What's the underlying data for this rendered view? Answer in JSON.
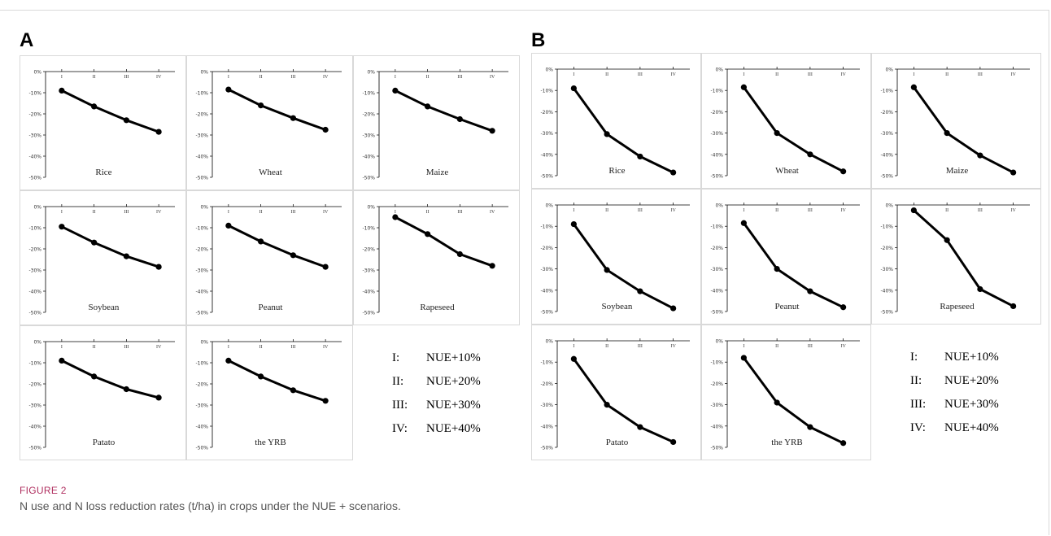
{
  "figure": {
    "label": "FIGURE 2",
    "caption": "N use and N loss reduction rates (t/ha) in crops under the NUE + scenarios."
  },
  "legend": [
    {
      "code": "I:",
      "text": "NUE+10%"
    },
    {
      "code": "II:",
      "text": "NUE+20%"
    },
    {
      "code": "III:",
      "text": "NUE+30%"
    },
    {
      "code": "IV:",
      "text": "NUE+40%"
    }
  ],
  "colors": {
    "line": "#000000",
    "border": "#d9d9d9",
    "caption_label": "#b03060"
  },
  "chart_data": [
    {
      "panel": "A",
      "type": "line",
      "x": [
        "I",
        "II",
        "III",
        "IV"
      ],
      "y_ticks": [
        "0%",
        "-10%",
        "-20%",
        "-30%",
        "-40%",
        "-50%"
      ],
      "ylim": [
        -50,
        0
      ],
      "charts": [
        {
          "name": "Rice",
          "values": [
            -9,
            -16.5,
            -23,
            -28.5
          ]
        },
        {
          "name": "Wheat",
          "values": [
            -8.5,
            -16,
            -22,
            -27.5
          ]
        },
        {
          "name": "Maize",
          "values": [
            -9,
            -16.5,
            -22.5,
            -28
          ]
        },
        {
          "name": "Soybean",
          "values": [
            -9.5,
            -17,
            -23.5,
            -28.5
          ]
        },
        {
          "name": "Peanut",
          "values": [
            -9,
            -16.5,
            -23,
            -28.5
          ]
        },
        {
          "name": "Rapeseed",
          "values": [
            -5,
            -13,
            -22.5,
            -28
          ]
        },
        {
          "name": "Patato",
          "values": [
            -9,
            -16.5,
            -22.5,
            -26.5
          ]
        },
        {
          "name": "the YRB",
          "values": [
            -9,
            -16.5,
            -23,
            -28
          ]
        }
      ]
    },
    {
      "panel": "B",
      "type": "line",
      "x": [
        "I",
        "II",
        "III",
        "IV"
      ],
      "y_ticks": [
        "0%",
        "-10%",
        "-20%",
        "-30%",
        "-40%",
        "-50%"
      ],
      "ylim": [
        -50,
        0
      ],
      "charts": [
        {
          "name": "Rice",
          "values": [
            -9,
            -30.5,
            -41,
            -48.5
          ]
        },
        {
          "name": "Wheat",
          "values": [
            -8.5,
            -30,
            -40,
            -48
          ]
        },
        {
          "name": "Maize",
          "values": [
            -8.5,
            -30,
            -40.5,
            -48.5
          ]
        },
        {
          "name": "Soybean",
          "values": [
            -9,
            -30.5,
            -40.5,
            -48.5
          ]
        },
        {
          "name": "Peanut",
          "values": [
            -8.5,
            -30,
            -40.5,
            -48
          ]
        },
        {
          "name": "Rapeseed",
          "values": [
            -2.5,
            -16.5,
            -39.5,
            -47.5
          ]
        },
        {
          "name": "Patato",
          "values": [
            -8.5,
            -30,
            -40.5,
            -47.5
          ]
        },
        {
          "name": "the YRB",
          "values": [
            -8,
            -29,
            -40.5,
            -48
          ]
        }
      ]
    }
  ]
}
